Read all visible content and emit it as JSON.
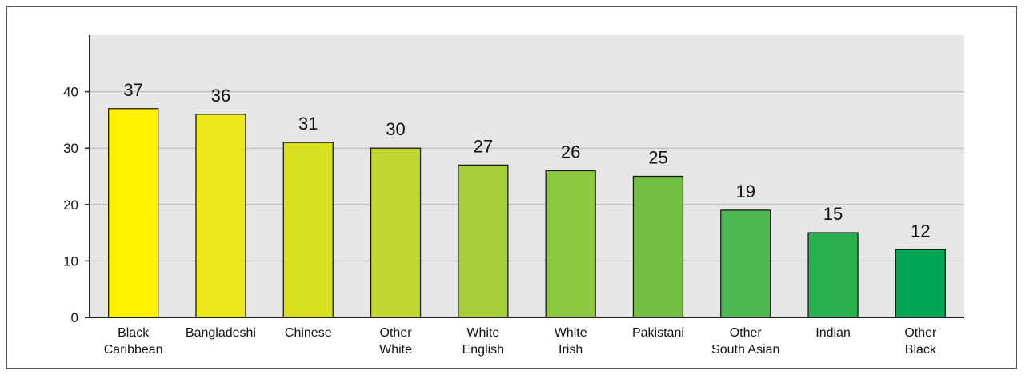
{
  "chart_data": {
    "type": "bar",
    "categories": [
      [
        "Black",
        "Caribbean"
      ],
      [
        "Bangladeshi"
      ],
      [
        "Chinese"
      ],
      [
        "Other",
        "White"
      ],
      [
        "White",
        "English"
      ],
      [
        "White",
        "Irish"
      ],
      [
        "Pakistani"
      ],
      [
        "Other",
        "South Asian"
      ],
      [
        "Indian"
      ],
      [
        "Other",
        "Black"
      ]
    ],
    "values": [
      37,
      36,
      31,
      30,
      27,
      26,
      25,
      19,
      15,
      12
    ],
    "value_labels": [
      "37",
      "36",
      "31",
      "30",
      "27",
      "26",
      "25",
      "19",
      "15",
      "12"
    ],
    "bar_colors": [
      "#fff200",
      "#ecea1d",
      "#d9e021",
      "#bfd730",
      "#a6ce39",
      "#8dc63f",
      "#72bf44",
      "#4cb84f",
      "#2bb04f",
      "#00a651"
    ],
    "ylim": [
      0,
      50
    ],
    "yticks": [
      0,
      10,
      20,
      30,
      40
    ],
    "grid": true,
    "plot_background": "#e6e6e6",
    "grid_color": "#ffffff",
    "axis_color": "#222222"
  }
}
